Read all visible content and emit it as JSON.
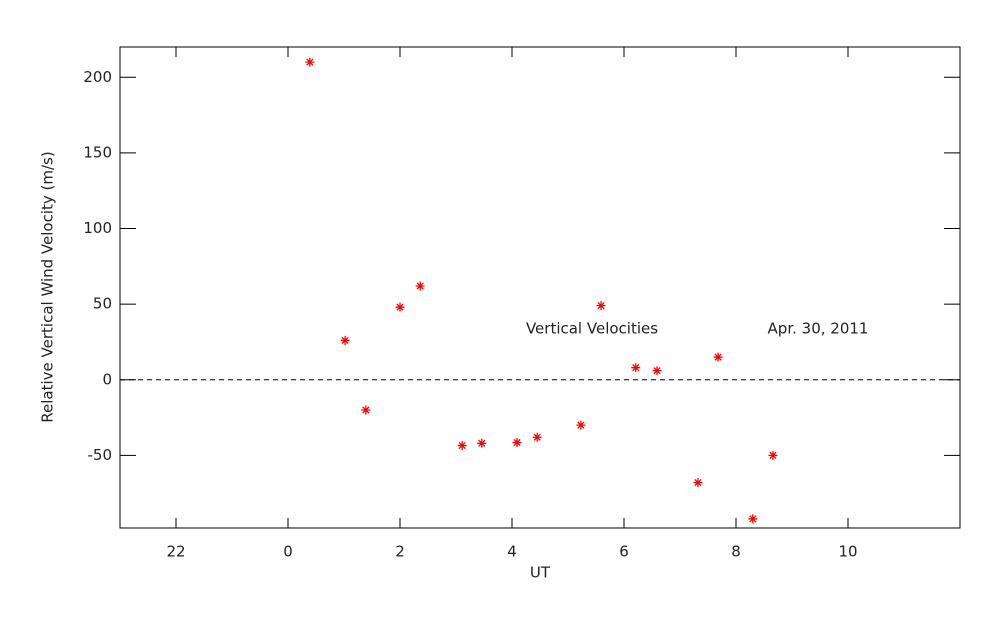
{
  "chart_data": {
    "type": "scatter",
    "x_label": "UT",
    "y_label": "Relative Vertical Wind Velocity (m/s)",
    "annotations": [
      "Vertical Velocities",
      "Apr. 30, 2011"
    ],
    "x": [
      0.39,
      1.02,
      1.39,
      2.0,
      2.36,
      3.11,
      3.46,
      4.09,
      4.45,
      5.23,
      5.59,
      6.21,
      6.59,
      7.32,
      7.68,
      8.3,
      8.66
    ],
    "values": [
      210,
      26,
      -20,
      48,
      62,
      -43.5,
      -42,
      -41.5,
      -38,
      -30,
      49,
      8,
      6,
      -68,
      15,
      -92,
      -50
    ],
    "color": "#ff0000",
    "xlim": [
      -3,
      12
    ],
    "xticks": [
      {
        "value": -2,
        "label": "22"
      },
      0,
      2,
      4,
      6,
      8,
      10
    ],
    "ylim": [
      -98,
      220
    ],
    "yticks": [
      -50,
      0,
      50,
      100,
      150,
      200
    ],
    "reference_line": 0
  }
}
